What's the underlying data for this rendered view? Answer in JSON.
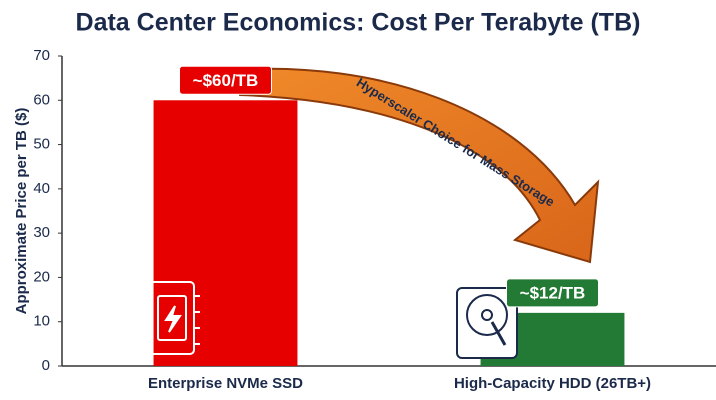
{
  "chart_data": {
    "type": "bar",
    "title": "Data Center Economics: Cost Per Terabyte (TB)",
    "y_label": "Approximate Price per TB ($)",
    "categories": [
      "Enterprise NVMe SSD",
      "High-Capacity HDD (26TB+)"
    ],
    "values": [
      60,
      12
    ],
    "value_labels": [
      "~$60/TB",
      "~$12/TB"
    ],
    "colors": [
      "#e60000",
      "#237a34"
    ],
    "annotation": "Hyperscaler Choice for Mass Storage",
    "ylim": [
      0,
      70
    ],
    "yticks": [
      0,
      10,
      20,
      30,
      40,
      50,
      60,
      70
    ],
    "grid": false
  }
}
